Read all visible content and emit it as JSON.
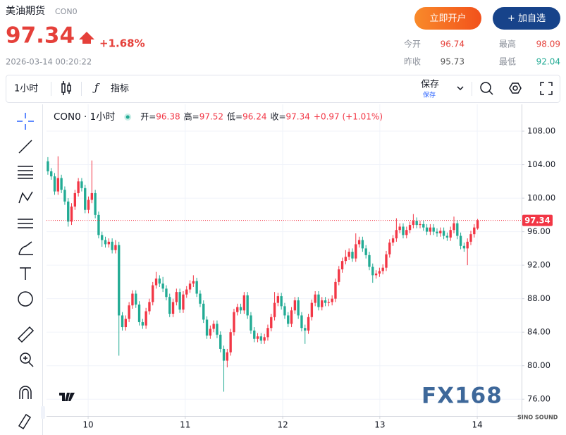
{
  "header": {
    "name": "美油期货",
    "code": "CON0",
    "price": 97.34,
    "change": "+1.68%",
    "time": "2026-03-14 00:20:22"
  },
  "buttons": {
    "open_account": "立即开户",
    "add_watchlist": "+ 加自选"
  },
  "stats": [
    {
      "label": "今开",
      "value": 96.74
    },
    {
      "label": "最高",
      "value": 98.09
    },
    {
      "label": "昨收",
      "value": 95.73
    },
    {
      "label": "最低",
      "value": 92.04
    }
  ],
  "toolbar": {
    "interval": "1小时",
    "indicators": "指标",
    "save": "保存",
    "save_sub": "保存"
  },
  "chart_data": {
    "type": "candlestick",
    "legend_title": "CON0 · 1小时",
    "ohlc_labels": [
      "开=",
      "高=",
      "低=",
      "收="
    ],
    "change": "+0.97 (+1.01%)",
    "up_color": "#f23645",
    "down_color": "#22ab94",
    "grid": true,
    "last_price_line": true,
    "x": [
      0,
      1,
      2,
      3,
      4,
      5,
      6,
      7,
      8,
      9,
      10,
      11,
      12,
      13,
      14,
      15,
      16,
      17,
      18,
      19,
      20,
      21,
      22,
      23,
      24,
      25,
      26,
      27,
      28,
      29,
      30,
      31,
      32,
      33,
      34,
      35,
      36,
      37,
      38,
      39,
      40,
      41,
      42,
      43,
      44,
      45,
      46,
      47,
      48,
      49,
      50,
      51,
      52,
      53,
      54,
      55,
      56,
      57,
      58,
      59,
      60,
      61,
      62,
      63,
      64,
      65,
      66,
      67,
      68,
      69,
      70,
      71,
      72,
      73,
      74,
      75,
      76,
      77,
      78,
      79,
      80,
      81,
      82,
      83,
      84,
      85,
      86,
      87,
      88,
      89,
      90,
      91,
      92,
      93,
      94,
      95,
      96,
      97,
      98,
      99,
      100,
      101,
      102,
      103,
      104,
      105,
      106,
      107,
      108,
      109,
      110,
      111,
      112,
      113,
      114,
      115,
      116,
      117,
      118,
      119,
      120,
      121,
      122,
      123,
      124,
      125,
      126,
      127
    ],
    "open": [
      104.4,
      103.2,
      102.6,
      100.8,
      102.4,
      101.0,
      99.6,
      97.2,
      99.0,
      100.6,
      102.0,
      101.2,
      98.6,
      99.8,
      100.6,
      98.0,
      95.6,
      95.0,
      94.5,
      94.8,
      93.8,
      94.4,
      86.0,
      84.6,
      85.6,
      87.2,
      88.6,
      87.3,
      85.2,
      84.8,
      86.5,
      87.6,
      89.6,
      90.4,
      89.8,
      89.2,
      88.2,
      86.2,
      87.6,
      88.8,
      86.7,
      88.5,
      89.1,
      89.8,
      90.1,
      88.6,
      87.4,
      85.5,
      83.6,
      84.4,
      85.0,
      83.7,
      82.0,
      80.6,
      81.6,
      84.0,
      86.4,
      87.0,
      86.6,
      88.4,
      86.0,
      84.2,
      83.2,
      83.5,
      83.0,
      83.4,
      84.5,
      85.8,
      87.5,
      88.3,
      87.1,
      86.0,
      85.0,
      86.6,
      87.8,
      86.0,
      84.5,
      84.2,
      85.8,
      87.5,
      88.5,
      87.0,
      87.8,
      87.5,
      87.6,
      88.0,
      90.0,
      91.5,
      92.5,
      93.0,
      93.6,
      92.8,
      94.5,
      95.0,
      94.0,
      93.2,
      91.8,
      90.8,
      91.0,
      91.3,
      91.7,
      93.3,
      94.7,
      95.2,
      96.2,
      96.6,
      95.6,
      96.2,
      96.8,
      97.3,
      96.8,
      96.9,
      96.5,
      96.0,
      96.5,
      96.0,
      95.8,
      96.1,
      95.5,
      95.3,
      96.2,
      97.0,
      95.5,
      94.3,
      94.0,
      94.8,
      95.7,
      96.38
    ],
    "high": [
      104.9,
      103.6,
      103.0,
      105.0,
      102.8,
      101.4,
      100.0,
      99.4,
      101.0,
      102.4,
      102.4,
      101.6,
      100.2,
      104.5,
      101.0,
      98.4,
      96.0,
      95.4,
      95.2,
      95.2,
      95.0,
      94.8,
      86.4,
      86.0,
      87.6,
      89.0,
      89.0,
      87.7,
      85.6,
      86.9,
      88.0,
      90.0,
      91.2,
      90.8,
      90.6,
      89.6,
      88.6,
      88.0,
      89.2,
      89.2,
      88.9,
      89.5,
      90.2,
      90.8,
      90.5,
      89.0,
      87.8,
      85.9,
      84.8,
      85.4,
      85.4,
      84.1,
      82.4,
      82.0,
      84.4,
      86.8,
      87.4,
      87.4,
      88.8,
      88.8,
      86.4,
      84.6,
      83.9,
      83.9,
      83.8,
      84.9,
      86.2,
      88.8,
      88.7,
      88.7,
      87.5,
      86.4,
      87.0,
      88.2,
      88.2,
      86.4,
      84.9,
      86.2,
      87.9,
      88.9,
      88.9,
      88.2,
      88.2,
      88.0,
      88.4,
      90.4,
      91.9,
      92.9,
      93.8,
      94.0,
      94.0,
      95.8,
      95.4,
      95.4,
      94.4,
      93.6,
      92.2,
      91.4,
      91.7,
      92.1,
      93.7,
      95.1,
      95.6,
      97.6,
      97.0,
      97.0,
      96.6,
      97.2,
      98.1,
      97.7,
      97.3,
      97.3,
      96.9,
      96.9,
      96.9,
      96.4,
      96.5,
      96.5,
      95.9,
      96.6,
      97.8,
      97.4,
      95.9,
      94.7,
      95.2,
      96.1,
      96.9,
      97.52
    ],
    "low": [
      102.8,
      102.2,
      100.4,
      100.4,
      100.6,
      99.2,
      96.6,
      96.8,
      98.6,
      100.2,
      100.8,
      98.2,
      98.2,
      99.4,
      97.6,
      95.2,
      94.2,
      94.1,
      94.1,
      93.4,
      93.4,
      81.2,
      84.2,
      84.2,
      85.2,
      86.8,
      86.9,
      84.8,
      84.4,
      84.4,
      86.1,
      87.2,
      89.2,
      89.4,
      88.8,
      87.8,
      85.8,
      85.8,
      87.2,
      86.3,
      86.3,
      88.1,
      88.7,
      89.4,
      88.2,
      87.0,
      85.1,
      83.2,
      83.2,
      84.0,
      83.3,
      81.6,
      76.9,
      79.8,
      81.2,
      83.6,
      86.0,
      86.2,
      86.2,
      85.6,
      83.8,
      82.8,
      82.8,
      82.6,
      82.6,
      83.0,
      84.1,
      85.4,
      87.1,
      86.7,
      85.6,
      84.6,
      84.6,
      86.2,
      85.6,
      84.1,
      82.6,
      83.8,
      85.4,
      87.1,
      86.6,
      86.6,
      87.1,
      87.1,
      87.2,
      87.6,
      89.6,
      91.1,
      92.1,
      92.6,
      92.4,
      92.4,
      94.1,
      93.6,
      92.8,
      91.4,
      89.9,
      90.4,
      90.6,
      90.9,
      91.3,
      92.9,
      94.3,
      94.8,
      95.8,
      95.2,
      95.2,
      95.8,
      96.4,
      96.4,
      96.4,
      96.1,
      95.6,
      95.6,
      95.6,
      95.4,
      95.4,
      95.1,
      94.9,
      94.9,
      95.8,
      95.1,
      93.9,
      93.6,
      92.0,
      94.4,
      95.3,
      96.24
    ],
    "close": [
      103.2,
      102.6,
      100.8,
      102.4,
      101.0,
      99.6,
      97.2,
      99.0,
      100.6,
      102.0,
      101.2,
      98.6,
      99.8,
      100.6,
      98.0,
      95.6,
      95.0,
      94.5,
      94.8,
      93.8,
      94.4,
      86.0,
      84.6,
      85.6,
      87.2,
      88.6,
      87.3,
      85.2,
      84.8,
      86.5,
      87.6,
      89.6,
      90.4,
      89.8,
      89.2,
      88.2,
      86.2,
      87.6,
      88.8,
      86.7,
      88.5,
      89.1,
      89.8,
      90.1,
      88.6,
      87.4,
      85.5,
      83.6,
      84.4,
      85.0,
      83.7,
      82.0,
      80.6,
      81.6,
      84.0,
      86.4,
      87.0,
      86.6,
      88.4,
      86.0,
      84.2,
      83.2,
      83.5,
      83.0,
      83.4,
      84.5,
      85.8,
      87.5,
      88.3,
      87.1,
      86.0,
      85.0,
      86.6,
      87.8,
      86.0,
      84.5,
      84.2,
      85.8,
      87.5,
      88.5,
      87.0,
      87.8,
      87.5,
      87.6,
      88.0,
      90.0,
      91.5,
      92.5,
      93.0,
      93.6,
      92.8,
      94.5,
      95.0,
      94.0,
      93.2,
      91.8,
      90.8,
      91.0,
      91.3,
      91.7,
      93.3,
      94.7,
      95.2,
      96.2,
      96.6,
      95.6,
      96.2,
      96.8,
      97.3,
      96.8,
      96.9,
      96.5,
      96.0,
      96.5,
      96.0,
      95.8,
      96.1,
      95.5,
      95.3,
      96.2,
      97.0,
      95.5,
      94.3,
      94.0,
      94.8,
      95.7,
      96.5,
      97.34
    ],
    "xlim": [
      -0.4,
      140
    ],
    "xticks": [
      {
        "value": 11.9,
        "label": "10"
      },
      {
        "value": 40.6,
        "label": "11"
      },
      {
        "value": 69.4,
        "label": "12"
      },
      {
        "value": 98.1,
        "label": "13"
      },
      {
        "value": 126.9,
        "label": "14"
      }
    ],
    "ylim": [
      74,
      111.2
    ],
    "yticks": [
      {
        "value": 76,
        "label": "76.00"
      },
      {
        "value": 80,
        "label": "80.00"
      },
      {
        "value": 84,
        "label": "84.00"
      },
      {
        "value": 88,
        "label": "88.00"
      },
      {
        "value": 92,
        "label": "92.00"
      },
      {
        "value": 96,
        "label": "96.00"
      },
      {
        "value": 100,
        "label": "100.00"
      },
      {
        "value": 104,
        "label": "104.00"
      },
      {
        "value": 108,
        "label": "108.00"
      }
    ],
    "watermark": "FX168",
    "watermark_sub": "SINO SOUND"
  }
}
